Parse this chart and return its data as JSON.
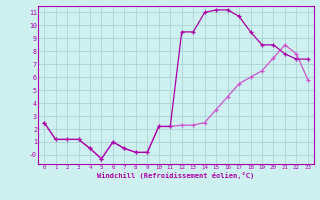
{
  "xlabel": "Windchill (Refroidissement éolien,°C)",
  "bg_color": "#cff0f0",
  "grid_color": "#aad4d4",
  "line_color1": "#aa00aa",
  "line_color2": "#cc55cc",
  "xlim": [
    -0.5,
    23.5
  ],
  "ylim": [
    -0.7,
    11.5
  ],
  "xticks": [
    0,
    1,
    2,
    3,
    4,
    5,
    6,
    7,
    8,
    9,
    10,
    11,
    12,
    13,
    14,
    15,
    16,
    17,
    18,
    19,
    20,
    21,
    22,
    23
  ],
  "yticks": [
    0,
    1,
    2,
    3,
    4,
    5,
    6,
    7,
    8,
    9,
    10,
    11
  ],
  "ytick_labels": [
    "-0",
    "1",
    "2",
    "3",
    "4",
    "5",
    "6",
    "7",
    "8",
    "9",
    "10",
    "11"
  ],
  "series1_x": [
    0,
    1,
    2,
    3,
    4,
    5,
    6,
    7,
    8,
    9,
    10,
    11,
    12,
    13,
    14,
    15,
    16,
    17,
    18,
    19,
    20,
    21,
    22,
    23
  ],
  "series1_y": [
    2.5,
    1.2,
    1.2,
    1.2,
    0.5,
    -0.3,
    1.0,
    0.5,
    0.2,
    0.2,
    2.2,
    2.2,
    9.5,
    9.5,
    11.0,
    11.2,
    11.2,
    10.7,
    9.5,
    8.5,
    8.5,
    7.8,
    7.4,
    7.4
  ],
  "series2_x": [
    0,
    1,
    2,
    3,
    4,
    5,
    6,
    7,
    8,
    9,
    10,
    11,
    12,
    13,
    14,
    15,
    16,
    17,
    18,
    19,
    20,
    21,
    22,
    23
  ],
  "series2_y": [
    2.5,
    1.2,
    1.2,
    1.2,
    0.5,
    -0.3,
    1.0,
    0.5,
    0.2,
    0.2,
    2.2,
    2.2,
    2.3,
    2.3,
    2.5,
    3.5,
    4.5,
    5.5,
    6.0,
    6.5,
    7.5,
    8.5,
    7.8,
    5.8
  ]
}
